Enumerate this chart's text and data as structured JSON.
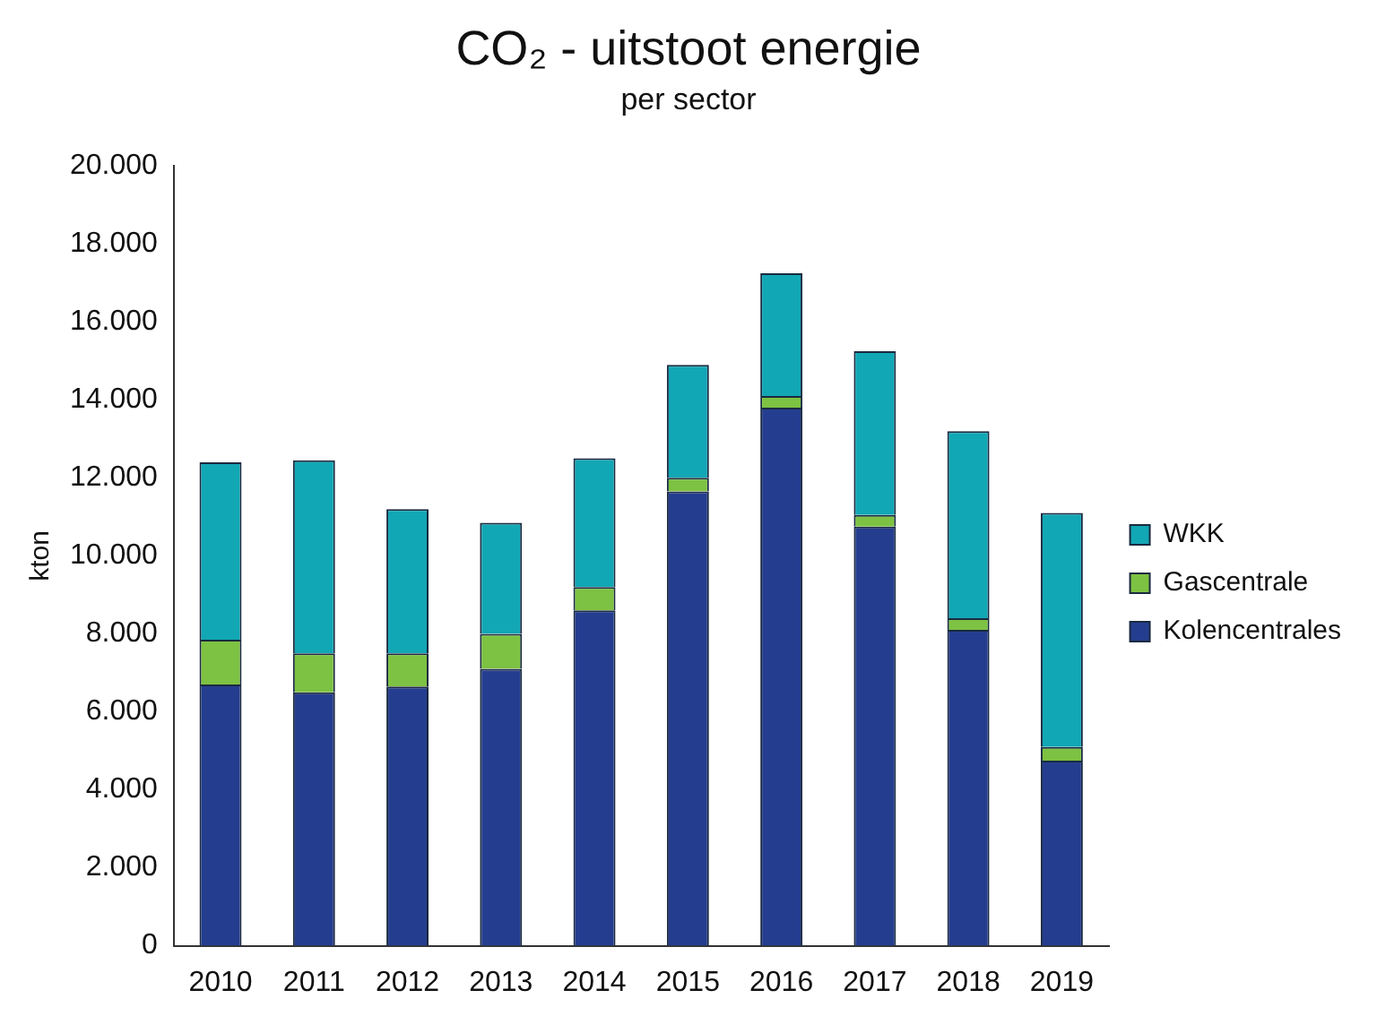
{
  "chart_data": {
    "type": "bar",
    "title": "CO₂ - uitstoot energie",
    "subtitle": "per sector",
    "ylabel": "kton",
    "categories": [
      "2010",
      "2011",
      "2012",
      "2013",
      "2014",
      "2015",
      "2016",
      "2017",
      "2018",
      "2019"
    ],
    "stacked": true,
    "series": [
      {
        "name": "Kolencentrales",
        "color": "#253d8f",
        "values": [
          6700,
          6500,
          6650,
          7100,
          8600,
          11650,
          13800,
          10750,
          8100,
          4750
        ]
      },
      {
        "name": "Gascentrale",
        "color": "#7dc242",
        "values": [
          1150,
          1000,
          850,
          900,
          600,
          350,
          300,
          300,
          300,
          350
        ]
      },
      {
        "name": "WKK",
        "color": "#12a7b5",
        "values": [
          4550,
          4950,
          3700,
          2850,
          3300,
          2900,
          3150,
          4200,
          4800,
          6000
        ]
      }
    ],
    "ylim": [
      0,
      20000
    ],
    "yticks": [
      {
        "value": 0,
        "label": "0"
      },
      {
        "value": 2000,
        "label": "2.000"
      },
      {
        "value": 4000,
        "label": "4.000"
      },
      {
        "value": 6000,
        "label": "6.000"
      },
      {
        "value": 8000,
        "label": "8.000"
      },
      {
        "value": 10000,
        "label": "10.000"
      },
      {
        "value": 12000,
        "label": "12.000"
      },
      {
        "value": 14000,
        "label": "14.000"
      },
      {
        "value": 16000,
        "label": "16.000"
      },
      {
        "value": 18000,
        "label": "18.000"
      },
      {
        "value": 20000,
        "label": "20.000"
      }
    ],
    "grid": false,
    "legend": "right"
  }
}
